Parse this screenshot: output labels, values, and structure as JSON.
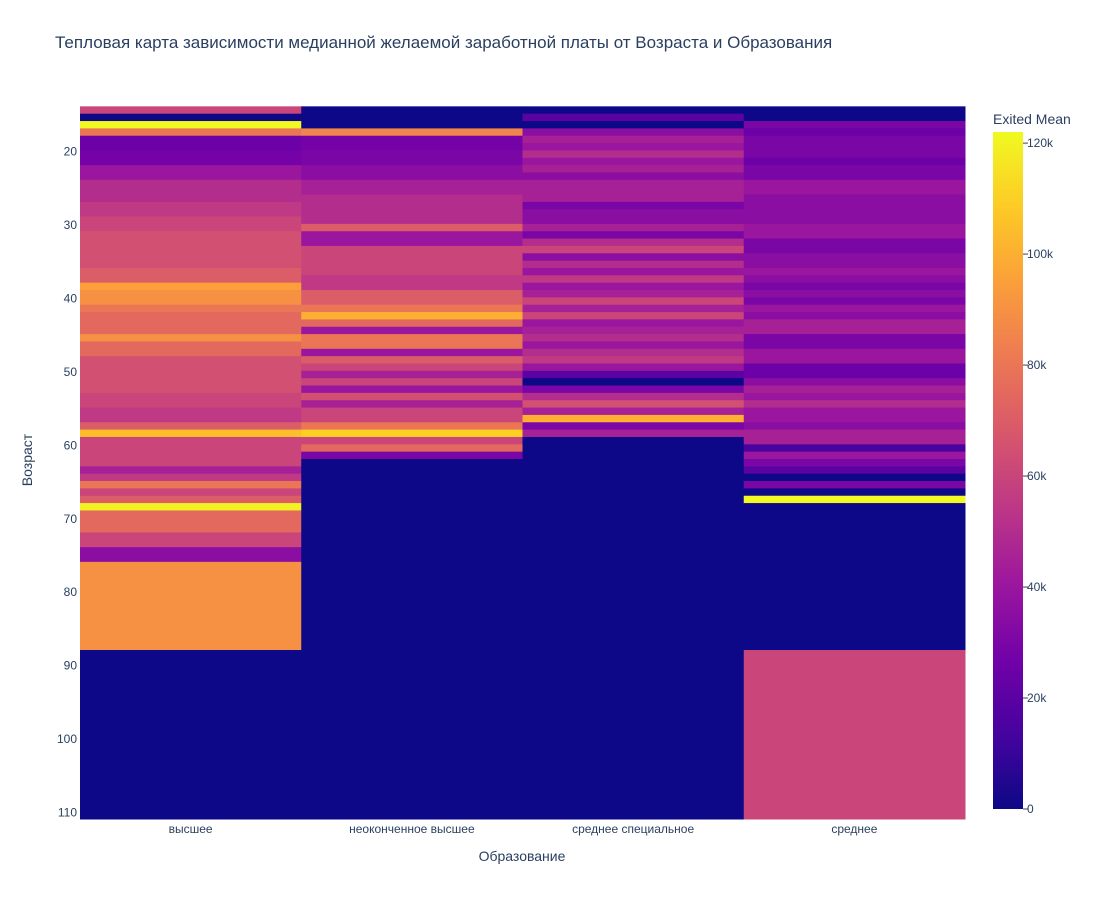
{
  "chart_data": {
    "type": "heatmap",
    "title": "Тепловая карта зависимости медианной желаемой заработной платы от Возраста и Образования",
    "xlabel": "Образование",
    "ylabel": "Возраст",
    "categories": [
      "высшее",
      "неоконченное высшее",
      "среднее специальное",
      "среднее"
    ],
    "y_range": [
      111,
      13
    ],
    "y_ticks": [
      20,
      30,
      40,
      50,
      60,
      70,
      80,
      90,
      100,
      110
    ],
    "colorbar": {
      "title": "Exited Mean",
      "range": [
        0,
        122000
      ],
      "ticks": [
        0,
        20000,
        40000,
        60000,
        80000,
        100000,
        120000
      ],
      "tick_labels": [
        "0",
        "20k",
        "40k",
        "60k",
        "80k",
        "100k",
        "120k"
      ],
      "colorscale": [
        "#0d0887",
        "#46039f",
        "#7201a8",
        "#9c179e",
        "#bd3786",
        "#d8576b",
        "#ed7953",
        "#fb9f3a",
        "#fdca26",
        "#f0f921"
      ]
    },
    "series": [
      {
        "values": [
          [
            14,
            15,
            60000
          ],
          [
            15,
            16,
            0
          ],
          [
            16,
            17,
            122000
          ],
          [
            17,
            18,
            80000
          ],
          [
            18,
            20,
            25000
          ],
          [
            20,
            22,
            28000
          ],
          [
            22,
            24,
            40000
          ],
          [
            24,
            27,
            50000
          ],
          [
            27,
            29,
            55000
          ],
          [
            29,
            31,
            60000
          ],
          [
            31,
            36,
            65000
          ],
          [
            36,
            38,
            70000
          ],
          [
            38,
            39,
            95000
          ],
          [
            39,
            41,
            90000
          ],
          [
            41,
            42,
            80000
          ],
          [
            42,
            45,
            75000
          ],
          [
            45,
            46,
            90000
          ],
          [
            46,
            48,
            75000
          ],
          [
            48,
            53,
            65000
          ],
          [
            53,
            55,
            60000
          ],
          [
            55,
            57,
            55000
          ],
          [
            57,
            58,
            70000
          ],
          [
            58,
            59,
            105000
          ],
          [
            59,
            63,
            60000
          ],
          [
            63,
            64,
            45000
          ],
          [
            64,
            65,
            55000
          ],
          [
            65,
            66,
            80000
          ],
          [
            66,
            67,
            60000
          ],
          [
            67,
            68,
            70000
          ],
          [
            68,
            69,
            120000
          ],
          [
            69,
            72,
            75000
          ],
          [
            72,
            74,
            60000
          ],
          [
            74,
            76,
            35000
          ],
          [
            76,
            88,
            90000
          ],
          [
            88,
            111,
            0
          ]
        ]
      },
      {
        "values": [
          [
            14,
            17,
            0
          ],
          [
            17,
            18,
            85000
          ],
          [
            18,
            20,
            28000
          ],
          [
            20,
            22,
            30000
          ],
          [
            22,
            24,
            35000
          ],
          [
            24,
            26,
            45000
          ],
          [
            26,
            30,
            50000
          ],
          [
            30,
            31,
            70000
          ],
          [
            31,
            33,
            40000
          ],
          [
            33,
            36,
            60000
          ],
          [
            36,
            37,
            60000
          ],
          [
            37,
            39,
            55000
          ],
          [
            39,
            41,
            70000
          ],
          [
            41,
            42,
            80000
          ],
          [
            42,
            43,
            100000
          ],
          [
            43,
            44,
            75000
          ],
          [
            44,
            45,
            40000
          ],
          [
            45,
            47,
            80000
          ],
          [
            47,
            48,
            40000
          ],
          [
            48,
            49,
            70000
          ],
          [
            49,
            50,
            60000
          ],
          [
            50,
            51,
            45000
          ],
          [
            51,
            52,
            60000
          ],
          [
            52,
            53,
            40000
          ],
          [
            53,
            54,
            65000
          ],
          [
            54,
            55,
            45000
          ],
          [
            55,
            57,
            60000
          ],
          [
            57,
            58,
            80000
          ],
          [
            58,
            59,
            110000
          ],
          [
            59,
            60,
            60000
          ],
          [
            60,
            61,
            75000
          ],
          [
            61,
            62,
            30000
          ],
          [
            62,
            111,
            0
          ]
        ]
      },
      {
        "values": [
          [
            14,
            15,
            0
          ],
          [
            15,
            16,
            20000
          ],
          [
            16,
            17,
            0
          ],
          [
            17,
            18,
            35000
          ],
          [
            18,
            19,
            45000
          ],
          [
            19,
            20,
            40000
          ],
          [
            20,
            21,
            50000
          ],
          [
            21,
            22,
            40000
          ],
          [
            22,
            23,
            45000
          ],
          [
            23,
            24,
            35000
          ],
          [
            24,
            27,
            45000
          ],
          [
            27,
            28,
            30000
          ],
          [
            28,
            30,
            35000
          ],
          [
            30,
            31,
            45000
          ],
          [
            31,
            32,
            30000
          ],
          [
            32,
            33,
            50000
          ],
          [
            33,
            34,
            60000
          ],
          [
            34,
            35,
            35000
          ],
          [
            35,
            36,
            50000
          ],
          [
            36,
            37,
            40000
          ],
          [
            37,
            38,
            55000
          ],
          [
            38,
            39,
            40000
          ],
          [
            39,
            40,
            45000
          ],
          [
            40,
            41,
            60000
          ],
          [
            41,
            42,
            45000
          ],
          [
            42,
            43,
            60000
          ],
          [
            43,
            44,
            40000
          ],
          [
            44,
            45,
            45000
          ],
          [
            45,
            46,
            50000
          ],
          [
            46,
            47,
            40000
          ],
          [
            47,
            48,
            50000
          ],
          [
            48,
            49,
            55000
          ],
          [
            49,
            50,
            40000
          ],
          [
            50,
            51,
            20000
          ],
          [
            51,
            52,
            0
          ],
          [
            52,
            53,
            30000
          ],
          [
            53,
            54,
            50000
          ],
          [
            54,
            55,
            65000
          ],
          [
            55,
            56,
            45000
          ],
          [
            56,
            57,
            100000
          ],
          [
            57,
            58,
            30000
          ],
          [
            58,
            59,
            45000
          ],
          [
            59,
            111,
            0
          ]
        ]
      },
      {
        "values": [
          [
            14,
            16,
            0
          ],
          [
            16,
            17,
            30000
          ],
          [
            17,
            18,
            25000
          ],
          [
            18,
            21,
            30000
          ],
          [
            21,
            22,
            25000
          ],
          [
            22,
            24,
            30000
          ],
          [
            24,
            26,
            40000
          ],
          [
            26,
            30,
            35000
          ],
          [
            30,
            32,
            40000
          ],
          [
            32,
            34,
            30000
          ],
          [
            34,
            36,
            35000
          ],
          [
            36,
            37,
            40000
          ],
          [
            37,
            38,
            35000
          ],
          [
            38,
            39,
            30000
          ],
          [
            39,
            40,
            35000
          ],
          [
            40,
            41,
            30000
          ],
          [
            41,
            42,
            40000
          ],
          [
            42,
            43,
            35000
          ],
          [
            43,
            45,
            45000
          ],
          [
            45,
            47,
            30000
          ],
          [
            47,
            49,
            40000
          ],
          [
            49,
            51,
            25000
          ],
          [
            51,
            52,
            35000
          ],
          [
            52,
            53,
            45000
          ],
          [
            53,
            54,
            40000
          ],
          [
            54,
            55,
            50000
          ],
          [
            55,
            57,
            40000
          ],
          [
            57,
            58,
            35000
          ],
          [
            58,
            60,
            45000
          ],
          [
            60,
            61,
            15000
          ],
          [
            61,
            62,
            40000
          ],
          [
            62,
            63,
            30000
          ],
          [
            63,
            64,
            20000
          ],
          [
            64,
            65,
            0
          ],
          [
            65,
            66,
            30000
          ],
          [
            66,
            67,
            0
          ],
          [
            67,
            68,
            122000
          ],
          [
            68,
            88,
            0
          ],
          [
            88,
            111,
            60000
          ]
        ]
      }
    ]
  }
}
